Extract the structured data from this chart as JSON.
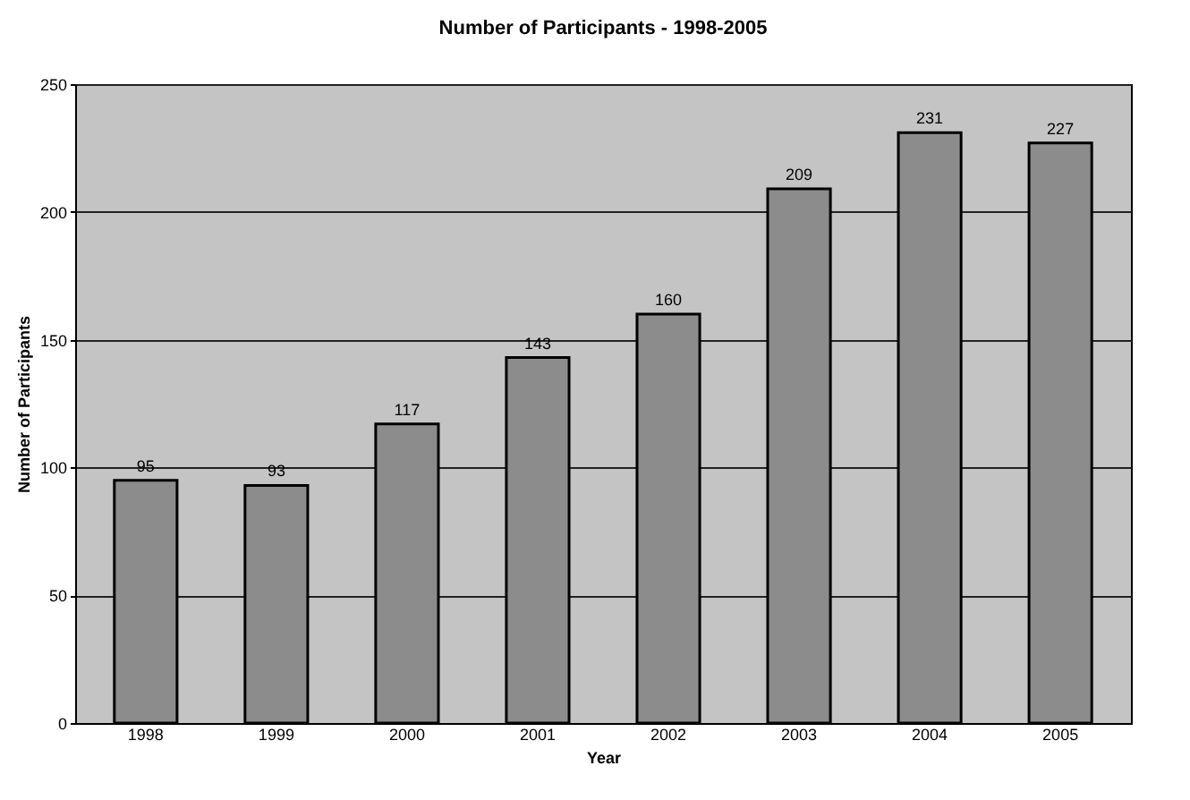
{
  "chart_data": {
    "type": "bar",
    "title": "Number of Participants - 1998-2005",
    "xlabel": "Year",
    "ylabel": "Number of Participants",
    "categories": [
      "1998",
      "1999",
      "2000",
      "2001",
      "2002",
      "2003",
      "2004",
      "2005"
    ],
    "values": [
      95,
      93,
      117,
      143,
      160,
      209,
      231,
      227
    ],
    "color": "#8c8c8c",
    "data_labels": true,
    "ylim": [
      0,
      250
    ],
    "yticks": [
      0,
      50,
      100,
      150,
      200,
      250
    ],
    "grid": "y"
  }
}
